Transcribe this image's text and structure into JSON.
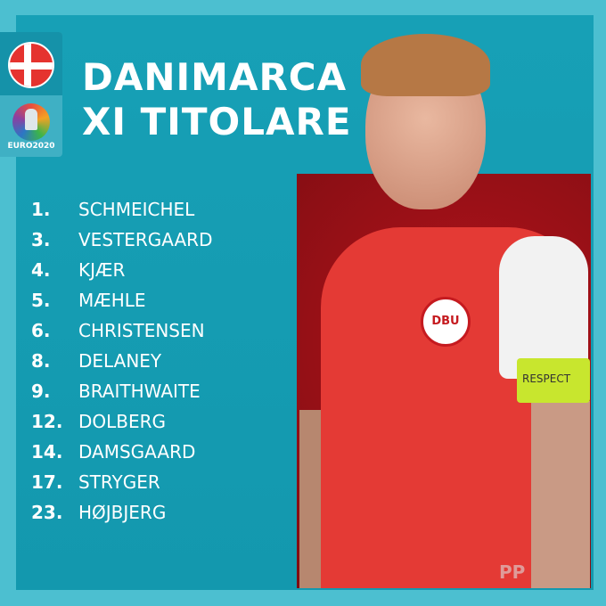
{
  "title": {
    "line1": "DANIMARCA",
    "line2": "XI TITOLARE"
  },
  "badges": {
    "flag": "denmark-flag",
    "tournament": "EURO2020"
  },
  "players": [
    {
      "num": "1.",
      "name": "SCHMEICHEL"
    },
    {
      "num": "3.",
      "name": "VESTERGAARD"
    },
    {
      "num": "4.",
      "name": "KJÆR"
    },
    {
      "num": "5.",
      "name": "MÆHLE"
    },
    {
      "num": "6.",
      "name": "CHRISTENSEN"
    },
    {
      "num": "8.",
      "name": "DELANEY"
    },
    {
      "num": "9.",
      "name": "BRAITHWAITE"
    },
    {
      "num": "12.",
      "name": "DOLBERG"
    },
    {
      "num": "14.",
      "name": "DAMSGAARD"
    },
    {
      "num": "17.",
      "name": "STRYGER"
    },
    {
      "num": "23.",
      "name": "HØJBJERG"
    }
  ],
  "photo": {
    "crest": "DBU",
    "armband": "RESPECT"
  },
  "watermark": "PP",
  "colors": {
    "background": "#4cbfd0",
    "panel": "#17a0b6",
    "shirt": "#e43a35"
  }
}
